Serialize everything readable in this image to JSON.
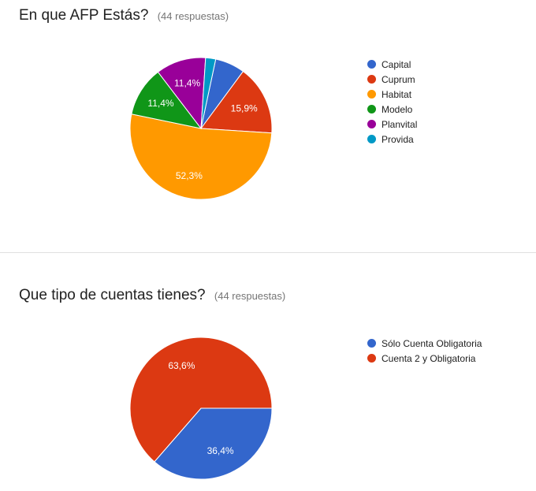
{
  "questions": [
    {
      "title": "En que AFP Estás?",
      "count": "(44 respuestas)"
    },
    {
      "title": "Que tipo de cuentas tienes?",
      "count": "(44 respuestas)"
    }
  ],
  "chart_data": [
    {
      "type": "pie",
      "categories": [
        "Capital",
        "Cuprum",
        "Habitat",
        "Modelo",
        "Planvital",
        "Provida"
      ],
      "values": [
        6.8,
        15.9,
        52.3,
        11.4,
        11.4,
        2.3
      ],
      "colors": [
        "#3366cc",
        "#dc3912",
        "#ff9900",
        "#109618",
        "#990099",
        "#0099c6"
      ],
      "slice_labels": [
        "",
        "15,9%",
        "52,3%",
        "11,4%",
        "11,4%",
        ""
      ],
      "legend_position": "right"
    },
    {
      "type": "pie",
      "categories": [
        "Sólo Cuenta Obligatoria",
        "Cuenta 2 y Obligatoria"
      ],
      "values": [
        36.4,
        63.6
      ],
      "colors": [
        "#3366cc",
        "#dc3912"
      ],
      "slice_labels": [
        "36,4%",
        "63,6%"
      ],
      "legend_position": "right"
    }
  ]
}
